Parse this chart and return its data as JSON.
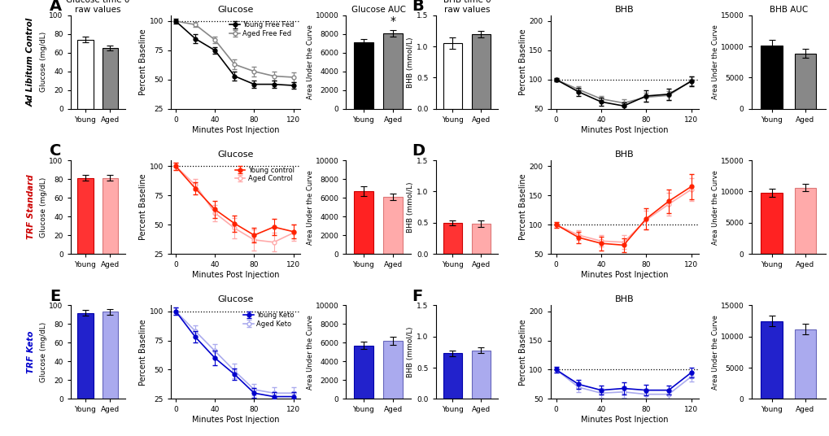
{
  "time_points": [
    0,
    20,
    40,
    60,
    80,
    100,
    120
  ],
  "xticks_line": [
    0,
    40,
    80,
    120
  ],
  "A_bar_values": [
    74,
    65
  ],
  "A_bar_sem": [
    3,
    3
  ],
  "A_bar_colors": [
    "white",
    "#888888"
  ],
  "A_bar_edge": [
    "black",
    "black"
  ],
  "A_line_young": [
    100,
    85,
    75,
    53,
    46,
    46,
    45
  ],
  "A_line_young_sem": [
    2,
    4,
    3,
    4,
    3,
    3,
    3
  ],
  "A_line_aged": [
    100,
    97,
    84,
    63,
    57,
    53,
    52
  ],
  "A_line_aged_sem": [
    1,
    2,
    3,
    4,
    4,
    4,
    4
  ],
  "A_auc_values": [
    7100,
    8100
  ],
  "A_auc_sem": [
    350,
    350
  ],
  "A_auc_colors": [
    "black",
    "#888888"
  ],
  "A_auc_edge": [
    "black",
    "black"
  ],
  "B_bar_values": [
    1.05,
    1.2
  ],
  "B_bar_sem": [
    0.09,
    0.05
  ],
  "B_bar_colors": [
    "white",
    "#888888"
  ],
  "B_bar_edge": [
    "black",
    "black"
  ],
  "B_line_young": [
    100,
    79,
    62,
    55,
    72,
    75,
    97
  ],
  "B_line_young_sem": [
    3,
    7,
    7,
    6,
    10,
    10,
    8
  ],
  "B_line_aged": [
    100,
    83,
    67,
    60,
    70,
    73,
    98
  ],
  "B_line_aged_sem": [
    3,
    5,
    5,
    6,
    8,
    8,
    8
  ],
  "B_auc_values": [
    10100,
    8900
  ],
  "B_auc_sem": [
    900,
    700
  ],
  "B_auc_colors": [
    "black",
    "#888888"
  ],
  "B_auc_edge": [
    "black",
    "black"
  ],
  "C_bar_values": [
    81,
    81
  ],
  "C_bar_sem": [
    3,
    3
  ],
  "C_bar_colors": [
    "#ff3333",
    "#ffaaaa"
  ],
  "C_bar_edge": [
    "#cc0000",
    "#dd7777"
  ],
  "C_line_young": [
    100,
    81,
    63,
    51,
    41,
    48,
    44
  ],
  "C_line_young_sem": [
    3,
    5,
    7,
    7,
    6,
    7,
    6
  ],
  "C_line_aged": [
    100,
    84,
    60,
    47,
    37,
    35,
    43
  ],
  "C_line_aged_sem": [
    3,
    5,
    7,
    9,
    9,
    8,
    7
  ],
  "C_auc_values": [
    6700,
    6100
  ],
  "C_auc_sem": [
    500,
    350
  ],
  "C_auc_colors": [
    "#ff2222",
    "#ffaaaa"
  ],
  "C_auc_edge": [
    "#cc0000",
    "#dd7777"
  ],
  "D_bar_values": [
    0.5,
    0.48
  ],
  "D_bar_sem": [
    0.04,
    0.05
  ],
  "D_bar_colors": [
    "#ff3333",
    "#ffaaaa"
  ],
  "D_bar_edge": [
    "#cc0000",
    "#dd7777"
  ],
  "D_line_young": [
    100,
    78,
    68,
    65,
    110,
    140,
    165
  ],
  "D_line_young_sem": [
    5,
    10,
    12,
    12,
    18,
    20,
    22
  ],
  "D_line_aged": [
    100,
    82,
    72,
    70,
    108,
    135,
    160
  ],
  "D_line_aged_sem": [
    5,
    8,
    10,
    12,
    16,
    20,
    20
  ],
  "D_auc_values": [
    9800,
    10600
  ],
  "D_auc_sem": [
    700,
    600
  ],
  "D_auc_colors": [
    "#ff2222",
    "#ffaaaa"
  ],
  "D_auc_edge": [
    "#cc0000",
    "#dd7777"
  ],
  "E_bar_values": [
    92,
    93
  ],
  "E_bar_sem": [
    3,
    3
  ],
  "E_bar_colors": [
    "#2222cc",
    "#aaaaee"
  ],
  "E_bar_edge": [
    "#0000aa",
    "#6666bb"
  ],
  "E_line_young": [
    100,
    78,
    60,
    46,
    30,
    27,
    27
  ],
  "E_line_young_sem": [
    3,
    5,
    6,
    5,
    4,
    4,
    4
  ],
  "E_line_aged": [
    100,
    83,
    66,
    49,
    33,
    30,
    30
  ],
  "E_line_aged_sem": [
    3,
    5,
    6,
    6,
    5,
    5,
    5
  ],
  "E_auc_values": [
    5700,
    6200
  ],
  "E_auc_sem": [
    400,
    450
  ],
  "E_auc_colors": [
    "#2222cc",
    "#aaaaee"
  ],
  "E_auc_edge": [
    "#0000aa",
    "#6666bb"
  ],
  "F_bar_values": [
    0.73,
    0.78
  ],
  "F_bar_sem": [
    0.05,
    0.05
  ],
  "F_bar_colors": [
    "#2222cc",
    "#aaaaee"
  ],
  "F_bar_edge": [
    "#0000aa",
    "#6666bb"
  ],
  "F_line_young": [
    100,
    75,
    65,
    68,
    65,
    65,
    95
  ],
  "F_line_young_sem": [
    5,
    8,
    8,
    10,
    9,
    8,
    8
  ],
  "F_line_aged": [
    100,
    70,
    60,
    62,
    58,
    58,
    88
  ],
  "F_line_aged_sem": [
    5,
    8,
    8,
    10,
    9,
    8,
    8
  ],
  "F_auc_values": [
    12500,
    11200
  ],
  "F_auc_sem": [
    900,
    800
  ],
  "F_auc_colors": [
    "#2222cc",
    "#aaaaee"
  ],
  "F_auc_edge": [
    "#0000aa",
    "#6666bb"
  ],
  "legend_A": [
    "Young Free Fed",
    "Aged Free Fed"
  ],
  "legend_C": [
    "Young control",
    "Aged Control"
  ],
  "legend_E": [
    "Young Keto",
    "Aged Keto"
  ],
  "title_A_bar": "Glucose time 0\nraw values",
  "title_A_line": "Glucose",
  "title_A_auc": "Glucose AUC",
  "title_B_bar": "BHB time 0\nraw values",
  "title_B_line": "BHB",
  "title_B_auc": "BHB AUC",
  "title_C_line": "Glucose",
  "title_D_line": "BHB",
  "title_E_line": "Glucose",
  "title_F_line": "BHB",
  "A_ylabel_bar": "Glucose (mg/dL)",
  "B_ylabel_bar": "BHB (mmol/L)",
  "C_ylabel_bar": "Glucose (mg/dL)",
  "D_ylabel_bar": "BHB (mmol/L)",
  "E_ylabel_bar": "Glucose (mg/dL)",
  "F_ylabel_bar": "BHB (mmol/L)",
  "A_ylim_bar": [
    0,
    100
  ],
  "A_yticks_bar": [
    0,
    20,
    40,
    60,
    80,
    100
  ],
  "B_ylim_bar": [
    0,
    1.5
  ],
  "B_yticks_bar": [
    0.0,
    0.5,
    1.0,
    1.5
  ],
  "C_ylim_bar": [
    0,
    100
  ],
  "C_yticks_bar": [
    0,
    20,
    40,
    60,
    80,
    100
  ],
  "D_ylim_bar": [
    0,
    1.5
  ],
  "D_yticks_bar": [
    0.0,
    0.5,
    1.0,
    1.5
  ],
  "E_ylim_bar": [
    0,
    100
  ],
  "E_yticks_bar": [
    0,
    20,
    40,
    60,
    80,
    100
  ],
  "F_ylim_bar": [
    0,
    1.5
  ],
  "F_yticks_bar": [
    0.0,
    0.5,
    1.0,
    1.5
  ],
  "AB_ylim_line": [
    25,
    105
  ],
  "AB_yticks_line": [
    25,
    50,
    75,
    100
  ],
  "BHB_ylim_line": [
    50,
    210
  ],
  "BHB_yticks_line": [
    50,
    100,
    150,
    200
  ],
  "gluc_ylim_auc": [
    0,
    10000
  ],
  "gluc_yticks_auc": [
    0,
    2000,
    4000,
    6000,
    8000,
    10000
  ],
  "bhb_ylim_auc": [
    0,
    15000
  ],
  "bhb_yticks_auc": [
    0,
    5000,
    10000,
    15000
  ],
  "xlabel_line": "Minutes Post Injection",
  "ylabel_line": "Percent Baseline",
  "ylabel_auc": "Area Under the Curve",
  "row_side_labels": [
    "Ad Libitum Control",
    "TRF Standard",
    "TRF Keto"
  ],
  "row_side_colors": [
    "black",
    "#cc0000",
    "#0000cc"
  ],
  "background_color": "white"
}
